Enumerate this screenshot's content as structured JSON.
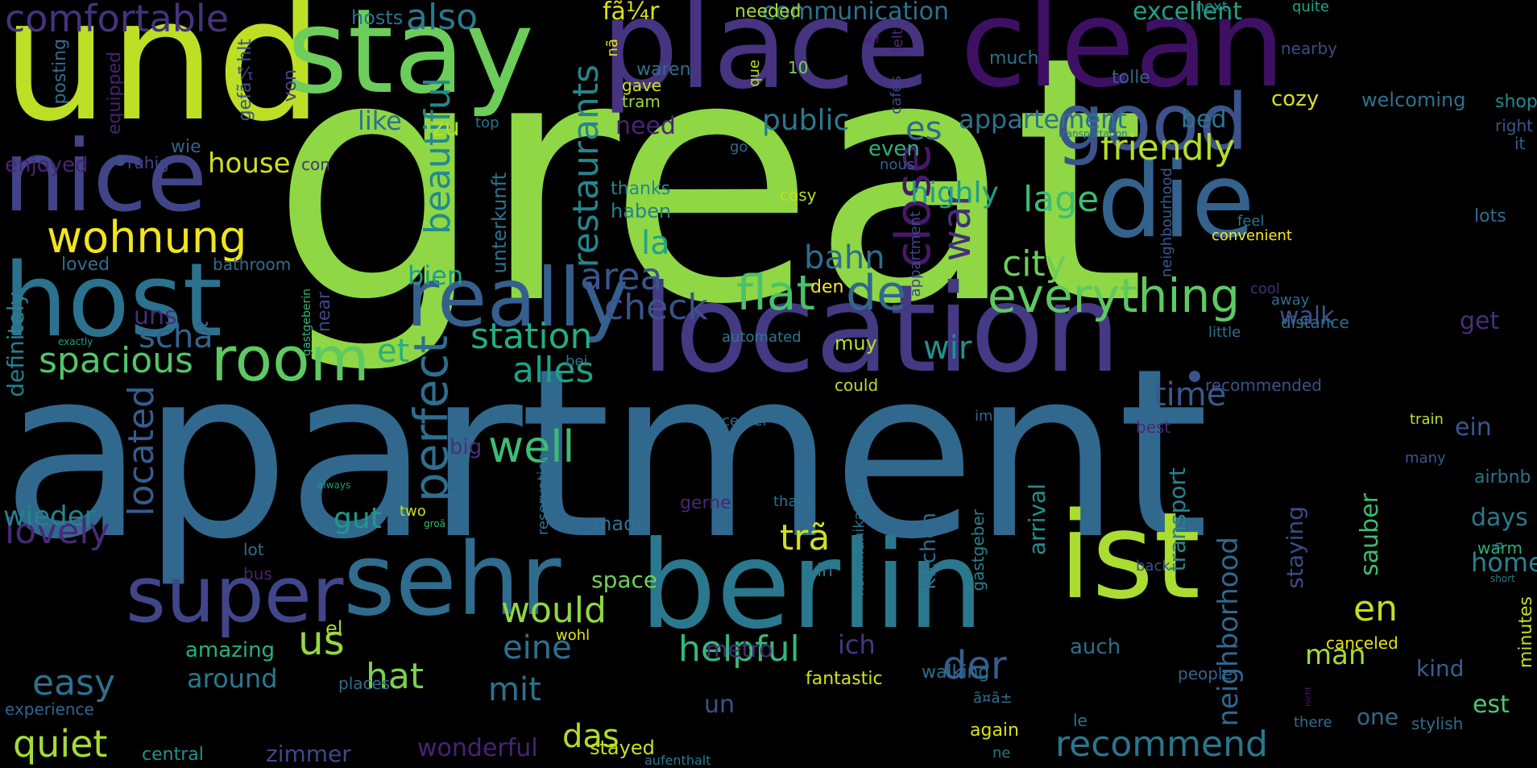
{
  "words": [
    {
      "text": "great",
      "color": "#8fd744"
    },
    {
      "text": "apartment",
      "color": "#31688e"
    },
    {
      "text": "und",
      "color": "#bddf26"
    },
    {
      "text": "place",
      "color": "#463480"
    },
    {
      "text": "clean",
      "color": "#3e1064"
    },
    {
      "text": "stay",
      "color": "#6ccd5a"
    },
    {
      "text": "location",
      "color": "#443983"
    },
    {
      "text": "berlin",
      "color": "#2a788e"
    },
    {
      "text": "host",
      "color": "#2c728e"
    },
    {
      "text": "nice",
      "color": "#414487"
    },
    {
      "text": "sehr",
      "color": "#2f6c8e"
    },
    {
      "text": "ist",
      "color": "#aadc32"
    },
    {
      "text": "die",
      "color": "#33638d"
    },
    {
      "text": "good",
      "color": "#3b528b"
    },
    {
      "text": "really",
      "color": "#355f8d"
    },
    {
      "text": "super",
      "color": "#404688"
    },
    {
      "text": "room",
      "color": "#5ec962"
    },
    {
      "text": "comfortable",
      "color": "#46327e"
    },
    {
      "text": "wohnung",
      "color": "#f0e51f"
    },
    {
      "text": "everything",
      "color": "#5ec962"
    },
    {
      "text": "flat",
      "color": "#4ac16d"
    },
    {
      "text": "de",
      "color": "#31688e"
    },
    {
      "text": "close",
      "color": "#48186a"
    },
    {
      "text": "war",
      "color": "#472d7b"
    },
    {
      "text": "perfect",
      "color": "#2e6e8e"
    },
    {
      "text": "restaurants",
      "color": "#25858e"
    },
    {
      "text": "beautiful",
      "color": "#238a8d"
    },
    {
      "text": "spacious",
      "color": "#52c569"
    },
    {
      "text": "station",
      "color": "#25ac82"
    },
    {
      "text": "alles",
      "color": "#1fa088"
    },
    {
      "text": "well",
      "color": "#3dbc74"
    },
    {
      "text": "friendly",
      "color": "#b5de2b"
    },
    {
      "text": "also",
      "color": "#2a788e"
    },
    {
      "text": "communication",
      "color": "#2c718e"
    },
    {
      "text": "excellent",
      "color": "#1fa188"
    },
    {
      "text": "recommend",
      "color": "#2a768e"
    },
    {
      "text": "located",
      "color": "#365c8d"
    },
    {
      "text": "lovely",
      "color": "#472a7a"
    },
    {
      "text": "quiet",
      "color": "#a5db36"
    },
    {
      "text": "easy",
      "color": "#2c718e"
    },
    {
      "text": "would",
      "color": "#90d743"
    },
    {
      "text": "helpful",
      "color": "#35b779"
    },
    {
      "text": "eine",
      "color": "#2d718e"
    },
    {
      "text": "das",
      "color": "#b0dd2f"
    },
    {
      "text": "hat",
      "color": "#7ad151"
    },
    {
      "text": "us",
      "color": "#97d83f"
    },
    {
      "text": "mit",
      "color": "#2c728e"
    },
    {
      "text": "der",
      "color": "#355e8d"
    },
    {
      "text": "ich",
      "color": "#453882"
    },
    {
      "text": "area",
      "color": "#3a548c"
    },
    {
      "text": "check",
      "color": "#3b528b"
    },
    {
      "text": "bahn",
      "color": "#2e6d8e"
    },
    {
      "text": "la",
      "color": "#20a486"
    },
    {
      "text": "bien",
      "color": "#1f9e89"
    },
    {
      "text": "city",
      "color": "#6ccd5a"
    },
    {
      "text": "lage",
      "color": "#3dbc74"
    },
    {
      "text": "highly",
      "color": "#1f9e89"
    },
    {
      "text": "house",
      "color": "#d0e11c"
    },
    {
      "text": "wir",
      "color": "#21918c"
    },
    {
      "text": "et",
      "color": "#29af7f"
    },
    {
      "text": "time",
      "color": "#38598c"
    },
    {
      "text": "walk",
      "color": "#3b528b"
    },
    {
      "text": "get",
      "color": "#472f7d"
    },
    {
      "text": "like",
      "color": "#2c728e"
    },
    {
      "text": "zu",
      "color": "#b8de29"
    },
    {
      "text": "public",
      "color": "#2a788e"
    },
    {
      "text": "es",
      "color": "#30698e"
    },
    {
      "text": "appartement",
      "color": "#2c728e"
    },
    {
      "text": "bed",
      "color": "#2a768e"
    },
    {
      "text": "need",
      "color": "#482374"
    },
    {
      "text": "cozy",
      "color": "#d8e219"
    },
    {
      "text": "welcoming",
      "color": "#2d718e"
    },
    {
      "text": "shops",
      "color": "#238a8d"
    },
    {
      "text": "even",
      "color": "#2db27d"
    },
    {
      "text": "spacious",
      "color": "#52c569"
    },
    {
      "text": "gut",
      "color": "#1f988b"
    },
    {
      "text": "wieder",
      "color": "#26828e"
    },
    {
      "text": "definitely",
      "color": "#277f8e"
    },
    {
      "text": "uns",
      "color": "#472d7b"
    },
    {
      "text": "schã",
      "color": "#33638d"
    },
    {
      "text": "enjoyed",
      "color": "#482475"
    },
    {
      "text": "ruhig",
      "color": "#3e4989"
    },
    {
      "text": "wie",
      "color": "#33638d"
    },
    {
      "text": "con",
      "color": "#46337f"
    },
    {
      "text": "hosts",
      "color": "#2c728e"
    },
    {
      "text": "posting",
      "color": "#2e6f8e"
    },
    {
      "text": "equipped",
      "color": "#482172"
    },
    {
      "text": "gefã¼hlt",
      "color": "#3b528b"
    },
    {
      "text": "von",
      "color": "#414487"
    },
    {
      "text": "fã¼r",
      "color": "#d8e219"
    },
    {
      "text": "nã",
      "color": "#e7e419"
    },
    {
      "text": "needed",
      "color": "#a8db34"
    },
    {
      "text": "waren",
      "color": "#2e6e8e"
    },
    {
      "text": "gave",
      "color": "#d2e21b"
    },
    {
      "text": "tram",
      "color": "#9bd93c"
    },
    {
      "text": "10",
      "color": "#7ad151"
    },
    {
      "text": "que",
      "color": "#bddf26"
    },
    {
      "text": "much",
      "color": "#2c728e"
    },
    {
      "text": "top",
      "color": "#2c738e"
    },
    {
      "text": "cafes",
      "color": "#414487"
    },
    {
      "text": "felt",
      "color": "#472a7a"
    },
    {
      "text": "auf",
      "color": "#482071"
    },
    {
      "text": "next",
      "color": "#238a8d"
    },
    {
      "text": "quite",
      "color": "#20a386"
    },
    {
      "text": "nearby",
      "color": "#3e4a89"
    },
    {
      "text": "tolle",
      "color": "#34618d"
    },
    {
      "text": "right",
      "color": "#39568c"
    },
    {
      "text": "it",
      "color": "#33638d"
    },
    {
      "text": "lots",
      "color": "#2e6e8e"
    },
    {
      "text": "transportation",
      "color": "#2a768e"
    },
    {
      "text": "nous",
      "color": "#34618d"
    },
    {
      "text": "go",
      "color": "#31688e"
    },
    {
      "text": "thanks",
      "color": "#23898e"
    },
    {
      "text": "cosy",
      "color": "#bddf26"
    },
    {
      "text": "haben",
      "color": "#26828e"
    },
    {
      "text": "unterkunft",
      "color": "#2d718e"
    },
    {
      "text": "feel",
      "color": "#2c728e"
    },
    {
      "text": "convenient",
      "color": "#fde725"
    },
    {
      "text": "neighbourhood",
      "color": "#365d8d"
    },
    {
      "text": "appartment",
      "color": "#3e4a89"
    },
    {
      "text": "cool",
      "color": "#472c7a"
    },
    {
      "text": "away",
      "color": "#2e6f8e"
    },
    {
      "text": "distance",
      "color": "#2e6d8e"
    },
    {
      "text": "little",
      "color": "#2c728e"
    },
    {
      "text": "loved",
      "color": "#2e6e8e"
    },
    {
      "text": "bathroom",
      "color": "#2e6f8e"
    },
    {
      "text": "near",
      "color": "#414487"
    },
    {
      "text": "gastgeberin",
      "color": "#35b779"
    },
    {
      "text": "den",
      "color": "#fde725"
    },
    {
      "text": "automated",
      "color": "#2a788e"
    },
    {
      "text": "bei",
      "color": "#2c728e"
    },
    {
      "text": "muy",
      "color": "#bddf26"
    },
    {
      "text": "could",
      "color": "#bddf26"
    },
    {
      "text": "recommended",
      "color": "#3b528b"
    },
    {
      "text": "exactly",
      "color": "#20a386"
    },
    {
      "text": "center",
      "color": "#2e6e8e"
    },
    {
      "text": "im",
      "color": "#33638d"
    },
    {
      "text": "best",
      "color": "#482878"
    },
    {
      "text": "train",
      "color": "#bddf26"
    },
    {
      "text": "big",
      "color": "#46307e"
    },
    {
      "text": "reservation",
      "color": "#2c728e"
    },
    {
      "text": "always",
      "color": "#1f988b"
    },
    {
      "text": "many",
      "color": "#38598c"
    },
    {
      "text": "airbnb",
      "color": "#2c728e"
    },
    {
      "text": "two",
      "color": "#c8e020"
    },
    {
      "text": "groã",
      "color": "#35b779"
    },
    {
      "text": "made",
      "color": "#2c728e"
    },
    {
      "text": "gerne",
      "color": "#482576"
    },
    {
      "text": "thank",
      "color": "#2c728e"
    },
    {
      "text": "kommunikation",
      "color": "#2c738e"
    },
    {
      "text": "kitchen",
      "color": "#2e6e8e"
    },
    {
      "text": "gastgeber",
      "color": "#26828e"
    },
    {
      "text": "arrival",
      "color": "#21918c"
    },
    {
      "text": "trã",
      "color": "#d0e11c"
    },
    {
      "text": "transport",
      "color": "#25848e"
    },
    {
      "text": "neighborhood",
      "color": "#31688e"
    },
    {
      "text": "staying",
      "color": "#3e4a89"
    },
    {
      "text": "sauber",
      "color": "#3fbc73"
    },
    {
      "text": "days",
      "color": "#2a788e"
    },
    {
      "text": "warm",
      "color": "#29af7f"
    },
    {
      "text": "home",
      "color": "#26828e"
    },
    {
      "text": "ein",
      "color": "#38598c"
    },
    {
      "text": "en",
      "color": "#c0df25"
    },
    {
      "text": "lot",
      "color": "#2d718e"
    },
    {
      "text": "bus",
      "color": "#482374"
    },
    {
      "text": "space",
      "color": "#70cf57"
    },
    {
      "text": "in",
      "color": "#2e6f8e"
    },
    {
      "text": "back",
      "color": "#39558c"
    },
    {
      "text": "ã",
      "color": "#2c728e"
    },
    {
      "text": "short",
      "color": "#2a788e"
    },
    {
      "text": "minutes",
      "color": "#c2df23"
    },
    {
      "text": "amazing",
      "color": "#29af7f"
    },
    {
      "text": "around",
      "color": "#2a788e"
    },
    {
      "text": "el",
      "color": "#a2da37"
    },
    {
      "text": "metro",
      "color": "#482979"
    },
    {
      "text": "wohl",
      "color": "#e5e419"
    },
    {
      "text": "places",
      "color": "#2e6e8e"
    },
    {
      "text": "fantastic",
      "color": "#d2e21b"
    },
    {
      "text": "walking",
      "color": "#2e6f8e"
    },
    {
      "text": "auch",
      "color": "#2e6d8e"
    },
    {
      "text": "people",
      "color": "#33638d"
    },
    {
      "text": "canceled",
      "color": "#e2e418"
    },
    {
      "text": "kind",
      "color": "#355f8d"
    },
    {
      "text": "man",
      "color": "#a5db36"
    },
    {
      "text": "one",
      "color": "#31688e"
    },
    {
      "text": "est",
      "color": "#52c569"
    },
    {
      "text": "experience",
      "color": "#33638d"
    },
    {
      "text": "central",
      "color": "#21918c"
    },
    {
      "text": "zimmer",
      "color": "#3f4788"
    },
    {
      "text": "wonderful",
      "color": "#482475"
    },
    {
      "text": "stayed",
      "color": "#c8e020"
    },
    {
      "text": "aufenthalt",
      "color": "#2a788e"
    },
    {
      "text": "ne",
      "color": "#2a768e"
    },
    {
      "text": "again",
      "color": "#d8e219"
    },
    {
      "text": "le",
      "color": "#2c728e"
    },
    {
      "text": "un",
      "color": "#3b528b"
    },
    {
      "text": "ã¤ã±",
      "color": "#2e6e8e"
    },
    {
      "text": "there",
      "color": "#2e6e8e"
    },
    {
      "text": "stylish",
      "color": "#2e6e8e"
    },
    {
      "text": "nicht",
      "color": "#482071"
    }
  ]
}
